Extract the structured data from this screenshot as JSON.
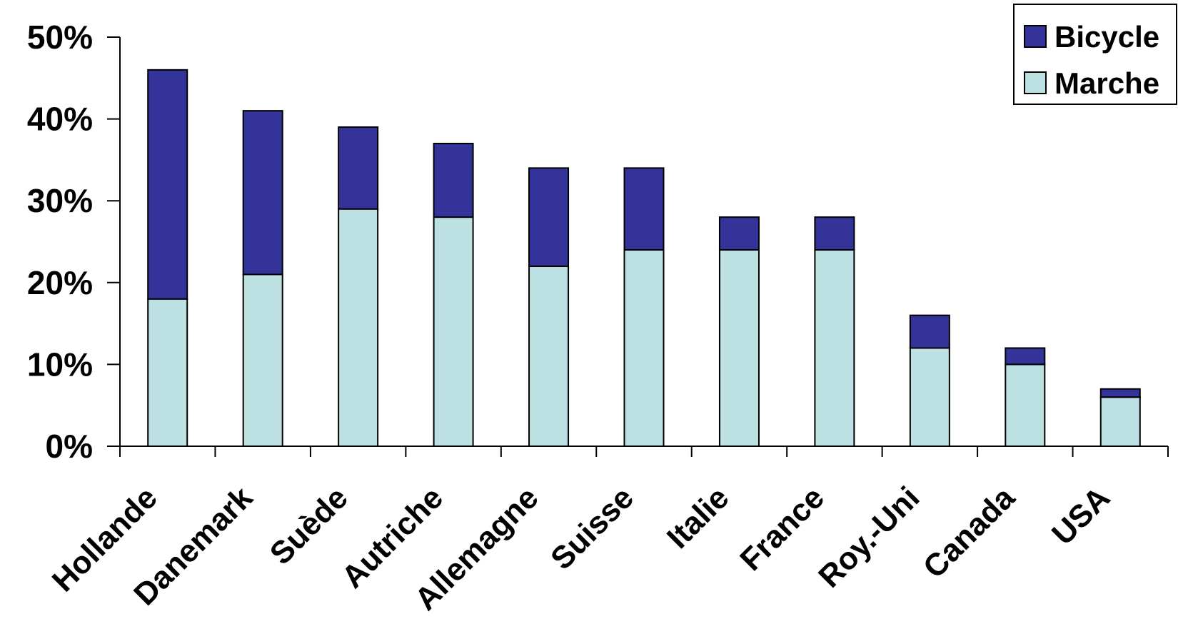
{
  "chart_data": {
    "type": "bar",
    "stacked": true,
    "categories": [
      "Hollande",
      "Danemark",
      "Suède",
      "Autriche",
      "Allemagne",
      "Suisse",
      "Italie",
      "France",
      "Roy.-Uni",
      "Canada",
      "USA"
    ],
    "series": [
      {
        "name": "Marche",
        "values": [
          18,
          21,
          29,
          28,
          22,
          24,
          24,
          24,
          12,
          10,
          6
        ]
      },
      {
        "name": "Bicycle",
        "values": [
          28,
          20,
          10,
          9,
          12,
          10,
          4,
          4,
          4,
          2,
          1
        ]
      }
    ],
    "colors": {
      "Marche": "#bde1e3",
      "Bicycle": "#333399"
    },
    "ylim": [
      0,
      50
    ],
    "yticks": [
      0,
      10,
      20,
      30,
      40,
      50
    ],
    "ytick_labels": [
      "0%",
      "10%",
      "20%",
      "30%",
      "40%",
      "50%"
    ],
    "legend": {
      "placement": "top-right",
      "entries": [
        "Bicycle",
        "Marche"
      ]
    },
    "grid": false
  }
}
